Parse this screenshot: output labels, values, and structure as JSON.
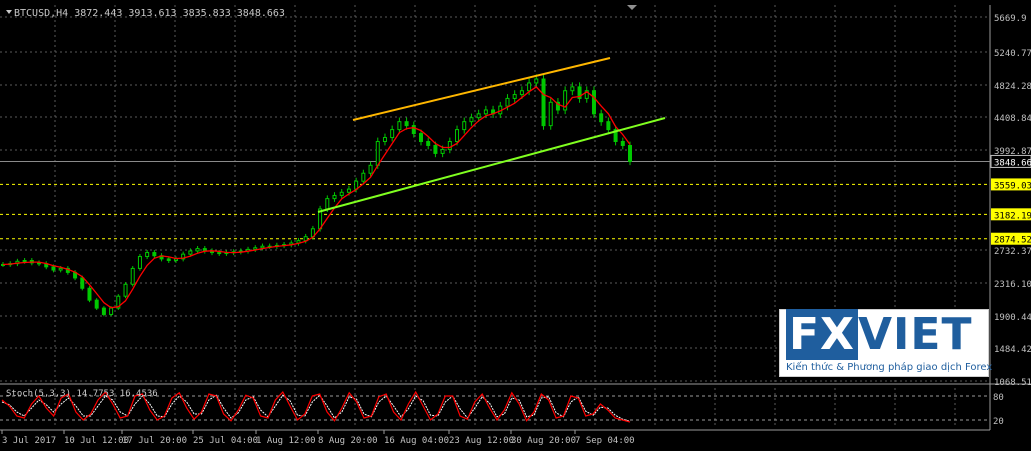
{
  "header": {
    "symbol_line": "BTCUSD,H4  3872.443 3913.613 3835.833 3848.663"
  },
  "oscillator": {
    "label": "Stoch(5,3,3) 14.7753 16.4536",
    "levels_shown": [
      "80",
      "20"
    ]
  },
  "logo": {
    "main_left": "FX",
    "main_right": "VIET",
    "tagline": "Kiến thức & Phương pháp giao dịch Forex"
  },
  "colors": {
    "background": "#000000",
    "candles": "#00c800",
    "moving_average": "#ff0000",
    "upper_channel_line": "#ffb700",
    "lower_channel_line": "#80ff20",
    "support_levels": "#ffff00",
    "grid": "#5a5a5a",
    "axis_text": "#c0c0c0",
    "stoch_main": "#ff0000",
    "stoch_signal": "#ffffff"
  },
  "chart_data": {
    "type": "candlestick",
    "timeframe": "H4",
    "y_ticks": [
      "5669.9",
      "5240.770",
      "4824.28",
      "4408.84",
      "3992.87",
      "2732.37",
      "2316.10",
      "1900.44",
      "1484.42",
      "1068.51"
    ],
    "y_range": [
      1068.51,
      5669.9
    ],
    "x_ticks": [
      "3 Jul 2017",
      "10 Jul 12:00",
      "17 Jul 20:00",
      "25 Jul 04:00",
      "1 Aug 12:00",
      "8 Aug 20:00",
      "16 Aug 04:00",
      "23 Aug 12:00",
      "30 Aug 20:00",
      "7 Sep 04:00"
    ],
    "current_price": "3848.663",
    "horizontal_levels": [
      "3559.03",
      "3182.19",
      "2874.52"
    ],
    "close_series_approx": [
      2550,
      2560,
      2590,
      2600,
      2570,
      2560,
      2520,
      2480,
      2500,
      2450,
      2380,
      2250,
      2100,
      2000,
      1920,
      2000,
      2150,
      2300,
      2500,
      2650,
      2700,
      2660,
      2620,
      2600,
      2620,
      2680,
      2720,
      2750,
      2720,
      2700,
      2690,
      2700,
      2710,
      2720,
      2740,
      2760,
      2780,
      2780,
      2790,
      2800,
      2820,
      2850,
      2900,
      3000,
      3250,
      3380,
      3420,
      3460,
      3500,
      3600,
      3700,
      3800,
      4100,
      4150,
      4250,
      4350,
      4300,
      4200,
      4100,
      4050,
      3950,
      4000,
      4100,
      4250,
      4350,
      4400,
      4450,
      4500,
      4450,
      4550,
      4650,
      4700,
      4750,
      4850,
      4900,
      4300,
      4600,
      4500,
      4750,
      4800,
      4650,
      4750,
      4450,
      4350,
      4250,
      4100,
      4050,
      3848.663
    ],
    "stochastic": {
      "k_approx": [
        70,
        55,
        30,
        25,
        60,
        80,
        50,
        30,
        75,
        85,
        40,
        20,
        35,
        70,
        90,
        60,
        25,
        30,
        80,
        85,
        45,
        20,
        30,
        75,
        88,
        50,
        22,
        40,
        85,
        80,
        35,
        18,
        45,
        82,
        75,
        30,
        25,
        70,
        90,
        55,
        20,
        35,
        80,
        85,
        40,
        18,
        50,
        88,
        65,
        25,
        30,
        78,
        85,
        40,
        20,
        60,
        90,
        55,
        20,
        35,
        80,
        80,
        30,
        22,
        65,
        85,
        50,
        20,
        45,
        88,
        60,
        18,
        40,
        85,
        70,
        25,
        30,
        80,
        75,
        30,
        35,
        60,
        45,
        25,
        20,
        14.7753
      ],
      "d_approx": [
        65,
        58,
        40,
        30,
        50,
        70,
        58,
        40,
        60,
        75,
        55,
        30,
        30,
        55,
        80,
        70,
        40,
        30,
        60,
        80,
        60,
        30,
        28,
        60,
        80,
        65,
        35,
        35,
        70,
        82,
        50,
        25,
        38,
        70,
        78,
        45,
        28,
        55,
        82,
        68,
        32,
        30,
        65,
        82,
        55,
        25,
        40,
        78,
        72,
        35,
        28,
        65,
        80,
        55,
        28,
        48,
        80,
        68,
        32,
        30,
        65,
        80,
        48,
        25,
        50,
        78,
        62,
        28,
        35,
        75,
        70,
        28,
        32,
        75,
        78,
        38,
        28,
        65,
        78,
        42,
        32,
        52,
        50,
        32,
        22,
        16.4536
      ],
      "levels": [
        80,
        20
      ]
    }
  }
}
